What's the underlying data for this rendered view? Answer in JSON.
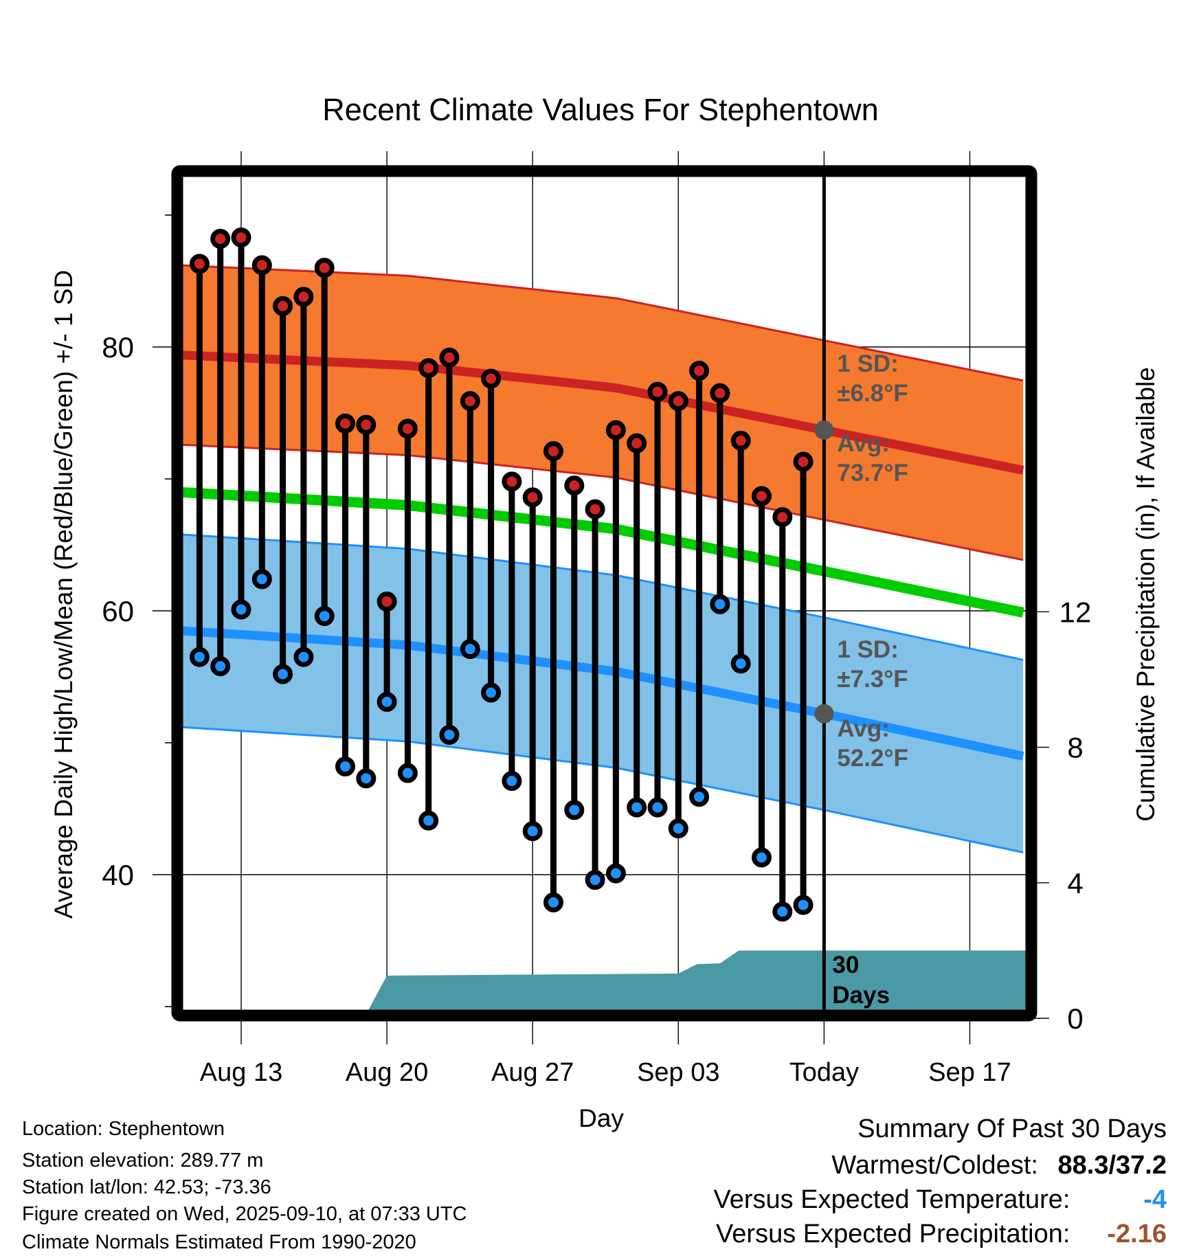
{
  "chart_data": {
    "type": "line",
    "title": "Recent Climate Values For Stephentown",
    "xlabel": "Day",
    "ylabel": "Average Daily High/Low/Mean (Red/Blue/Green) +/- 1 SD",
    "y2label": "Cumulative Precipitation (in), If Available",
    "ylim": [
      30,
      93
    ],
    "y2lim": [
      0,
      15
    ],
    "yticks": [
      40,
      60,
      80
    ],
    "y2ticks": [
      0,
      4,
      8,
      12
    ],
    "x_range_days": [
      "Aug 10",
      "Sep 20"
    ],
    "xticks": [
      {
        "label": "Aug 13",
        "day": 2
      },
      {
        "label": "Aug 20",
        "day": 9
      },
      {
        "label": "Aug 27",
        "day": 16
      },
      {
        "label": "Sep 03",
        "day": 23
      },
      {
        "label": "Today",
        "day": 30
      },
      {
        "label": "Sep 17",
        "day": 37
      }
    ],
    "day0": "Aug 11",
    "today_day": 30,
    "dates": [
      "Aug 11",
      "Aug 12",
      "Aug 13",
      "Aug 14",
      "Aug 15",
      "Aug 16",
      "Aug 17",
      "Aug 18",
      "Aug 19",
      "Aug 20",
      "Aug 21",
      "Aug 22",
      "Aug 23",
      "Aug 24",
      "Aug 25",
      "Aug 26",
      "Aug 27",
      "Aug 28",
      "Aug 29",
      "Aug 30",
      "Aug 31",
      "Sep 01",
      "Sep 02",
      "Sep 03",
      "Sep 04",
      "Sep 05",
      "Sep 06",
      "Sep 07",
      "Sep 08",
      "Sep 09"
    ],
    "series": [
      {
        "name": "Daily High",
        "color": "#cc2222",
        "values": [
          86.3,
          88.2,
          88.3,
          86.2,
          83.1,
          83.8,
          86.0,
          74.2,
          74.1,
          60.7,
          73.8,
          78.4,
          79.2,
          75.9,
          77.6,
          69.8,
          68.6,
          72.1,
          69.5,
          67.7,
          73.7,
          72.7,
          76.6,
          75.9,
          78.2,
          76.5,
          72.9,
          68.7,
          67.1,
          71.3
        ]
      },
      {
        "name": "Daily Low",
        "color": "#1e90ff",
        "values": [
          56.5,
          55.8,
          60.1,
          62.4,
          55.2,
          56.5,
          59.6,
          48.2,
          47.3,
          53.1,
          47.7,
          44.1,
          50.6,
          57.1,
          53.8,
          47.1,
          43.3,
          37.9,
          44.9,
          39.6,
          40.1,
          45.1,
          45.1,
          43.5,
          45.9,
          60.5,
          56.0,
          41.3,
          37.2,
          37.7
        ]
      },
      {
        "name": "Normal High",
        "color": "#cc2222",
        "days": [
          -1,
          10,
          20,
          30,
          41
        ],
        "values": [
          79.4,
          78.6,
          76.9,
          73.7,
          70.2
        ],
        "sd": 6.8
      },
      {
        "name": "Normal Low",
        "color": "#1e90ff",
        "days": [
          -1,
          10,
          20,
          30,
          41
        ],
        "values": [
          58.5,
          57.4,
          55.4,
          52.2,
          48.5
        ],
        "sd": 7.3
      },
      {
        "name": "Normal Mean",
        "color": "#00cc00",
        "days": [
          -1,
          10,
          20,
          30,
          41
        ],
        "values": [
          69.0,
          68.0,
          66.2,
          63.0,
          59.4
        ]
      },
      {
        "name": "Cumulative Precipitation",
        "color": "#4a9aa5",
        "axis": "y2",
        "days": [
          -1,
          7.9,
          9,
          23,
          23.9,
          25,
          25.9,
          41
        ],
        "values": [
          0,
          0,
          1.26,
          1.32,
          1.6,
          1.62,
          2.0,
          2.0
        ]
      }
    ],
    "annotations": {
      "high_sd": "1 SD:",
      "high_sd_val": "±6.8°F",
      "high_avg": "Avg:",
      "high_avg_val": "73.7°F",
      "low_sd": "1 SD:",
      "low_sd_val": "±7.3°F",
      "low_avg": "Avg:",
      "low_avg_val": "52.2°F",
      "period_line1": "30",
      "period_line2": "Days"
    },
    "colors": {
      "high_band": "#f5792e",
      "low_band": "#82c1e8",
      "annotation": "#555555"
    }
  },
  "info": {
    "location": "Location: Stephentown",
    "elevation": "Station elevation: 289.77 m",
    "latlon": "Station lat/lon: 42.53; -73.36",
    "created": "Figure created on Wed, 2025-09-10, at 07:33 UTC",
    "normals": "Climate Normals Estimated From 1990-2020"
  },
  "summary": {
    "title": "Summary Of Past 30 Days",
    "warmest_label": "Warmest/Coldest:",
    "warmest_value": "88.3/37.2",
    "temp_label": "Versus Expected Temperature:",
    "temp_value": "-4",
    "temp_color": "#1e90ff",
    "precip_label": "Versus Expected Precipitation:",
    "precip_value": "-2.16",
    "precip_color": "#a0522d"
  }
}
